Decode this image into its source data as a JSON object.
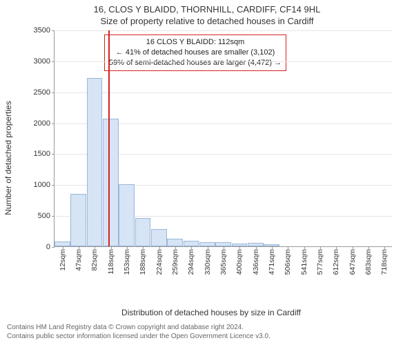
{
  "title": {
    "main": "16, CLOS Y BLAIDD, THORNHILL, CARDIFF, CF14 9HL",
    "sub": "Size of property relative to detached houses in Cardiff",
    "fontsize": 13,
    "color": "#333333"
  },
  "chart": {
    "type": "histogram",
    "y_label": "Number of detached properties",
    "x_label": "Distribution of detached houses by size in Cardiff",
    "label_fontsize": 12,
    "background_color": "#ffffff",
    "grid_color": "#e5e5e5",
    "axis_color": "#999999",
    "bar_fill": "#d6e4f5",
    "bar_border": "#9ab6d9",
    "marker_color": "#d62020",
    "ylim": [
      0,
      3500
    ],
    "yticks": [
      0,
      500,
      1000,
      1500,
      2000,
      2500,
      3000,
      3500
    ],
    "xticks_sqm": [
      12,
      47,
      82,
      118,
      153,
      188,
      224,
      259,
      294,
      330,
      365,
      400,
      436,
      471,
      506,
      541,
      577,
      612,
      647,
      683,
      718
    ],
    "x_unit": "sqm",
    "bars": [
      {
        "x": 12,
        "count": 80
      },
      {
        "x": 47,
        "count": 850
      },
      {
        "x": 82,
        "count": 2720
      },
      {
        "x": 118,
        "count": 2060
      },
      {
        "x": 153,
        "count": 1000
      },
      {
        "x": 188,
        "count": 460
      },
      {
        "x": 224,
        "count": 280
      },
      {
        "x": 259,
        "count": 120
      },
      {
        "x": 294,
        "count": 90
      },
      {
        "x": 330,
        "count": 70
      },
      {
        "x": 365,
        "count": 70
      },
      {
        "x": 400,
        "count": 50
      },
      {
        "x": 436,
        "count": 60
      },
      {
        "x": 471,
        "count": 30
      },
      {
        "x": 506,
        "count": 0
      },
      {
        "x": 541,
        "count": 0
      },
      {
        "x": 577,
        "count": 0
      },
      {
        "x": 612,
        "count": 0
      },
      {
        "x": 647,
        "count": 0
      },
      {
        "x": 683,
        "count": 0
      },
      {
        "x": 718,
        "count": 0
      }
    ],
    "marker_x_sqm": 112
  },
  "annotation": {
    "border_color": "#d62020",
    "lines": [
      "16 CLOS Y BLAIDD: 112sqm",
      "← 41% of detached houses are smaller (3,102)",
      "59% of semi-detached houses are larger (4,472) →"
    ]
  },
  "footer": {
    "line1": "Contains HM Land Registry data © Crown copyright and database right 2024.",
    "line2": "Contains public sector information licensed under the Open Government Licence v3.0.",
    "fontsize": 10,
    "color": "#666666"
  }
}
